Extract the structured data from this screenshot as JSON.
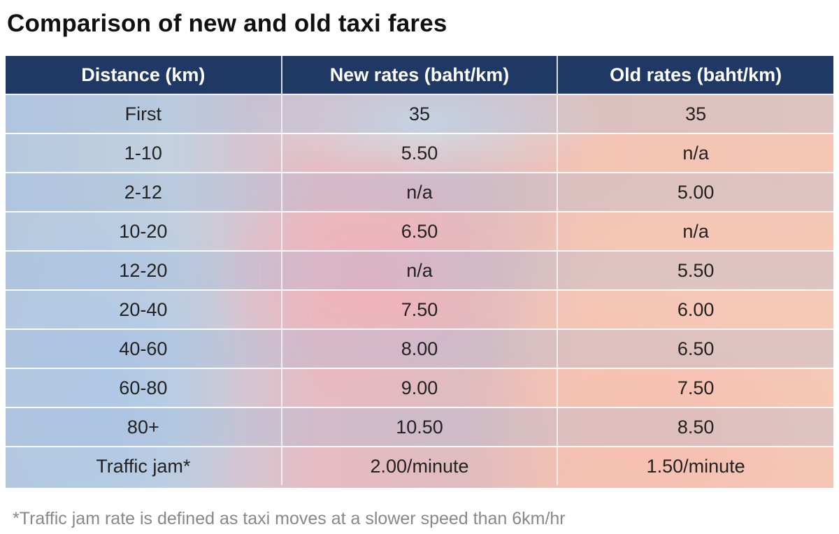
{
  "title": "Comparison of new and old taxi fares",
  "chart_data": {
    "type": "table",
    "columns": [
      "Distance (km)",
      "New rates (baht/km)",
      "Old rates (baht/km)"
    ],
    "rows": [
      [
        "First",
        "35",
        "35"
      ],
      [
        "1-10",
        "5.50",
        "n/a"
      ],
      [
        "2-12",
        "n/a",
        "5.00"
      ],
      [
        "10-20",
        "6.50",
        "n/a"
      ],
      [
        "12-20",
        "n/a",
        "5.50"
      ],
      [
        "20-40",
        "7.50",
        "6.00"
      ],
      [
        "40-60",
        "8.00",
        "6.50"
      ],
      [
        "60-80",
        "9.00",
        "7.50"
      ],
      [
        "80+",
        "10.50",
        "8.50"
      ],
      [
        "Traffic jam*",
        "2.00/minute",
        "1.50/minute"
      ]
    ]
  },
  "footnote": "*Traffic jam rate is defined as taxi moves at a slower speed than 6km/hr",
  "colors": {
    "header": "#203864",
    "header_text": "#ffffff"
  }
}
